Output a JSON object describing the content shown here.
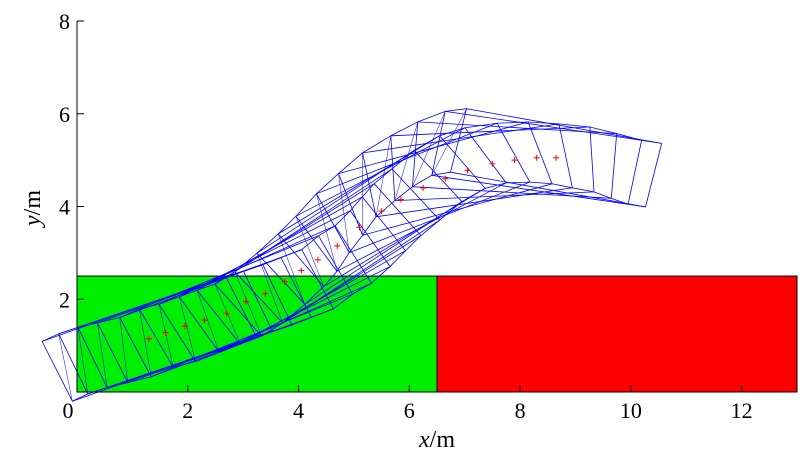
{
  "chart_data": {
    "type": "line",
    "xlabel_var": "x",
    "xlabel_unit": "/m",
    "ylabel_var": "y",
    "ylabel_unit": "/m",
    "xlim": [
      0,
      13
    ],
    "ylim": [
      0,
      8
    ],
    "x_ticks": [
      0,
      2,
      4,
      6,
      8,
      10,
      12
    ],
    "y_ticks": [
      2,
      4,
      6,
      8
    ],
    "grid": false,
    "regions": [
      {
        "x0": 0,
        "x1": 6.5,
        "y0": 0,
        "y1": 2.5,
        "color": "#00ee00"
      },
      {
        "x0": 6.5,
        "x1": 13,
        "y0": 0,
        "y1": 2.5,
        "color": "#ff0000"
      }
    ],
    "outline_color": "#0000ff",
    "centroid_color": "#ff0000",
    "frames": [
      {
        "cx": 1.3,
        "cy": 1.15,
        "w": 3.6,
        "h": 1.4,
        "angle": 23
      },
      {
        "cx": 1.6,
        "cy": 1.28,
        "w": 3.6,
        "h": 1.4,
        "angle": 22
      },
      {
        "cx": 1.95,
        "cy": 1.42,
        "w": 3.6,
        "h": 1.4,
        "angle": 22
      },
      {
        "cx": 2.3,
        "cy": 1.55,
        "w": 3.6,
        "h": 1.4,
        "angle": 23
      },
      {
        "cx": 2.7,
        "cy": 1.7,
        "w": 3.6,
        "h": 1.4,
        "angle": 24
      },
      {
        "cx": 3.05,
        "cy": 1.95,
        "w": 3.6,
        "h": 1.4,
        "angle": 26
      },
      {
        "cx": 3.4,
        "cy": 2.12,
        "w": 3.6,
        "h": 1.4,
        "angle": 28
      },
      {
        "cx": 3.75,
        "cy": 2.38,
        "w": 3.6,
        "h": 1.4,
        "angle": 31
      },
      {
        "cx": 4.05,
        "cy": 2.62,
        "w": 3.6,
        "h": 1.4,
        "angle": 34
      },
      {
        "cx": 4.35,
        "cy": 2.85,
        "w": 3.6,
        "h": 1.4,
        "angle": 37
      },
      {
        "cx": 4.7,
        "cy": 3.15,
        "w": 3.6,
        "h": 1.4,
        "angle": 38
      },
      {
        "cx": 5.1,
        "cy": 3.55,
        "w": 3.6,
        "h": 1.4,
        "angle": 38
      },
      {
        "cx": 5.5,
        "cy": 3.9,
        "w": 3.6,
        "h": 1.4,
        "angle": 36
      },
      {
        "cx": 5.85,
        "cy": 4.15,
        "w": 3.6,
        "h": 1.4,
        "angle": 32
      },
      {
        "cx": 6.25,
        "cy": 4.4,
        "w": 3.6,
        "h": 1.4,
        "angle": 25
      },
      {
        "cx": 6.65,
        "cy": 4.6,
        "w": 3.6,
        "h": 1.4,
        "angle": 18
      },
      {
        "cx": 7.05,
        "cy": 4.78,
        "w": 3.6,
        "h": 1.4,
        "angle": 10
      },
      {
        "cx": 7.5,
        "cy": 4.92,
        "w": 3.6,
        "h": 1.4,
        "angle": 3
      },
      {
        "cx": 7.9,
        "cy": 5.0,
        "w": 3.6,
        "h": 1.4,
        "angle": -4
      },
      {
        "cx": 8.3,
        "cy": 5.05,
        "w": 3.6,
        "h": 1.4,
        "angle": -10
      },
      {
        "cx": 8.65,
        "cy": 5.05,
        "w": 3.6,
        "h": 1.4,
        "angle": -12
      }
    ]
  }
}
